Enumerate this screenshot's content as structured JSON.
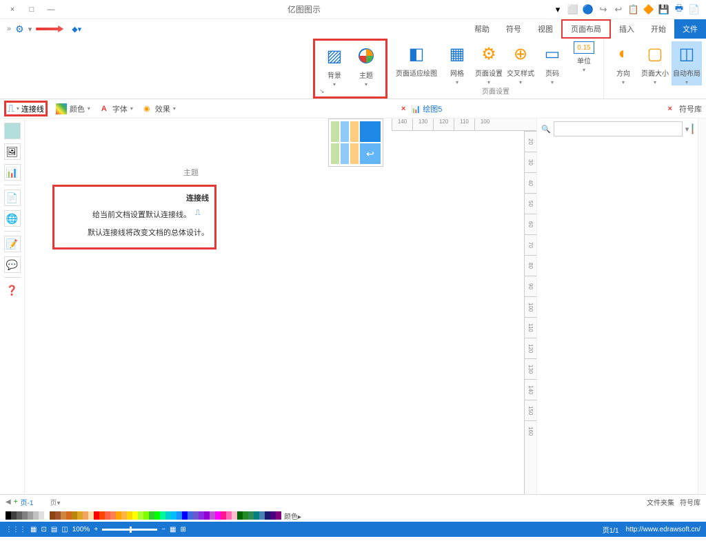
{
  "window": {
    "title": "亿图图示",
    "min": "—",
    "max": "□",
    "close": "×"
  },
  "qat": {
    "icons": [
      "📄",
      "🖶",
      "💾",
      "🔶",
      "📋",
      "↩",
      "↪",
      "🔵",
      "⬜",
      "▾"
    ]
  },
  "menu": {
    "gear": "⚙",
    "help": "◆▾"
  },
  "tabs": {
    "file": "文件",
    "start": "开始",
    "insert": "插入",
    "layout": "页面布局",
    "view": "视图",
    "symbol": "符号",
    "help": "帮助"
  },
  "ribbon": {
    "auto_layout": "自动布局",
    "page_size": "页面大小",
    "direction": "方向",
    "unit": "单位",
    "page_number": "页码",
    "letter_spacing": "交叉样式",
    "page_setup": "页面设置",
    "grid": "网格",
    "page_fit": "页面适应绘图",
    "theme": "主题",
    "background": "背景",
    "group_page": "页面设置",
    "unit_badge": "0.15"
  },
  "sec": {
    "connector": "连接线",
    "color_opt": "颜色",
    "font_opt": "字体",
    "effect_opt": "效果",
    "theme_label": "主题",
    "doc_tab": "绘图5",
    "close_x": "×",
    "sym_panel": "符号库"
  },
  "tooltip": {
    "title": "连接线",
    "line1": "给当前文档设置默认连接线。",
    "line2": "默认连接线将改变文档的总体设计。"
  },
  "ruler_h": [
    "140",
    "130",
    "120",
    "110",
    "100"
  ],
  "ruler_v": [
    "20",
    "30",
    "40",
    "50",
    "60",
    "70",
    "80",
    "90",
    "100",
    "110",
    "120",
    "130",
    "140",
    "150",
    "160"
  ],
  "side": {
    "title": "符号库",
    "search_ph": ""
  },
  "pagebar": {
    "page1": "页-1",
    "page_dd": "页▾",
    "plus": "+",
    "arrow": "◀",
    "files": "文件夹集",
    "symbols": "符号库"
  },
  "colors": [
    "#000000",
    "#404040",
    "#606060",
    "#808080",
    "#a0a0a0",
    "#c0c0c0",
    "#e0e0e0",
    "#ffffff",
    "#8b4513",
    "#a0522d",
    "#cd853f",
    "#d2691e",
    "#b8860b",
    "#daa520",
    "#f4a460",
    "#ffdead",
    "#ff0000",
    "#ff4500",
    "#ff6347",
    "#ff7f50",
    "#ffa500",
    "#ffb347",
    "#ffd700",
    "#ffff00",
    "#adff2f",
    "#7fff00",
    "#32cd32",
    "#00ff00",
    "#00fa9a",
    "#00ced1",
    "#00bfff",
    "#1e90ff",
    "#0000ff",
    "#4169e1",
    "#6a5acd",
    "#8a2be2",
    "#9400d3",
    "#ba55d3",
    "#ff00ff",
    "#ff1493",
    "#ff69b4",
    "#ffc0cb",
    "#006400",
    "#228b22",
    "#2e8b57",
    "#008080",
    "#4682b4",
    "#191970",
    "#4b0082",
    "#800080"
  ],
  "colorbar_label": "颜色▸",
  "status": {
    "url": "http://www.edrawsoft.cn/",
    "page": "页1/1",
    "zoom": "100%",
    "minus": "−",
    "plus": "+",
    "icons": [
      "⊞",
      "▦",
      "◫",
      "▤",
      "⊡",
      "▦",
      "⋮⋮⋮"
    ]
  }
}
